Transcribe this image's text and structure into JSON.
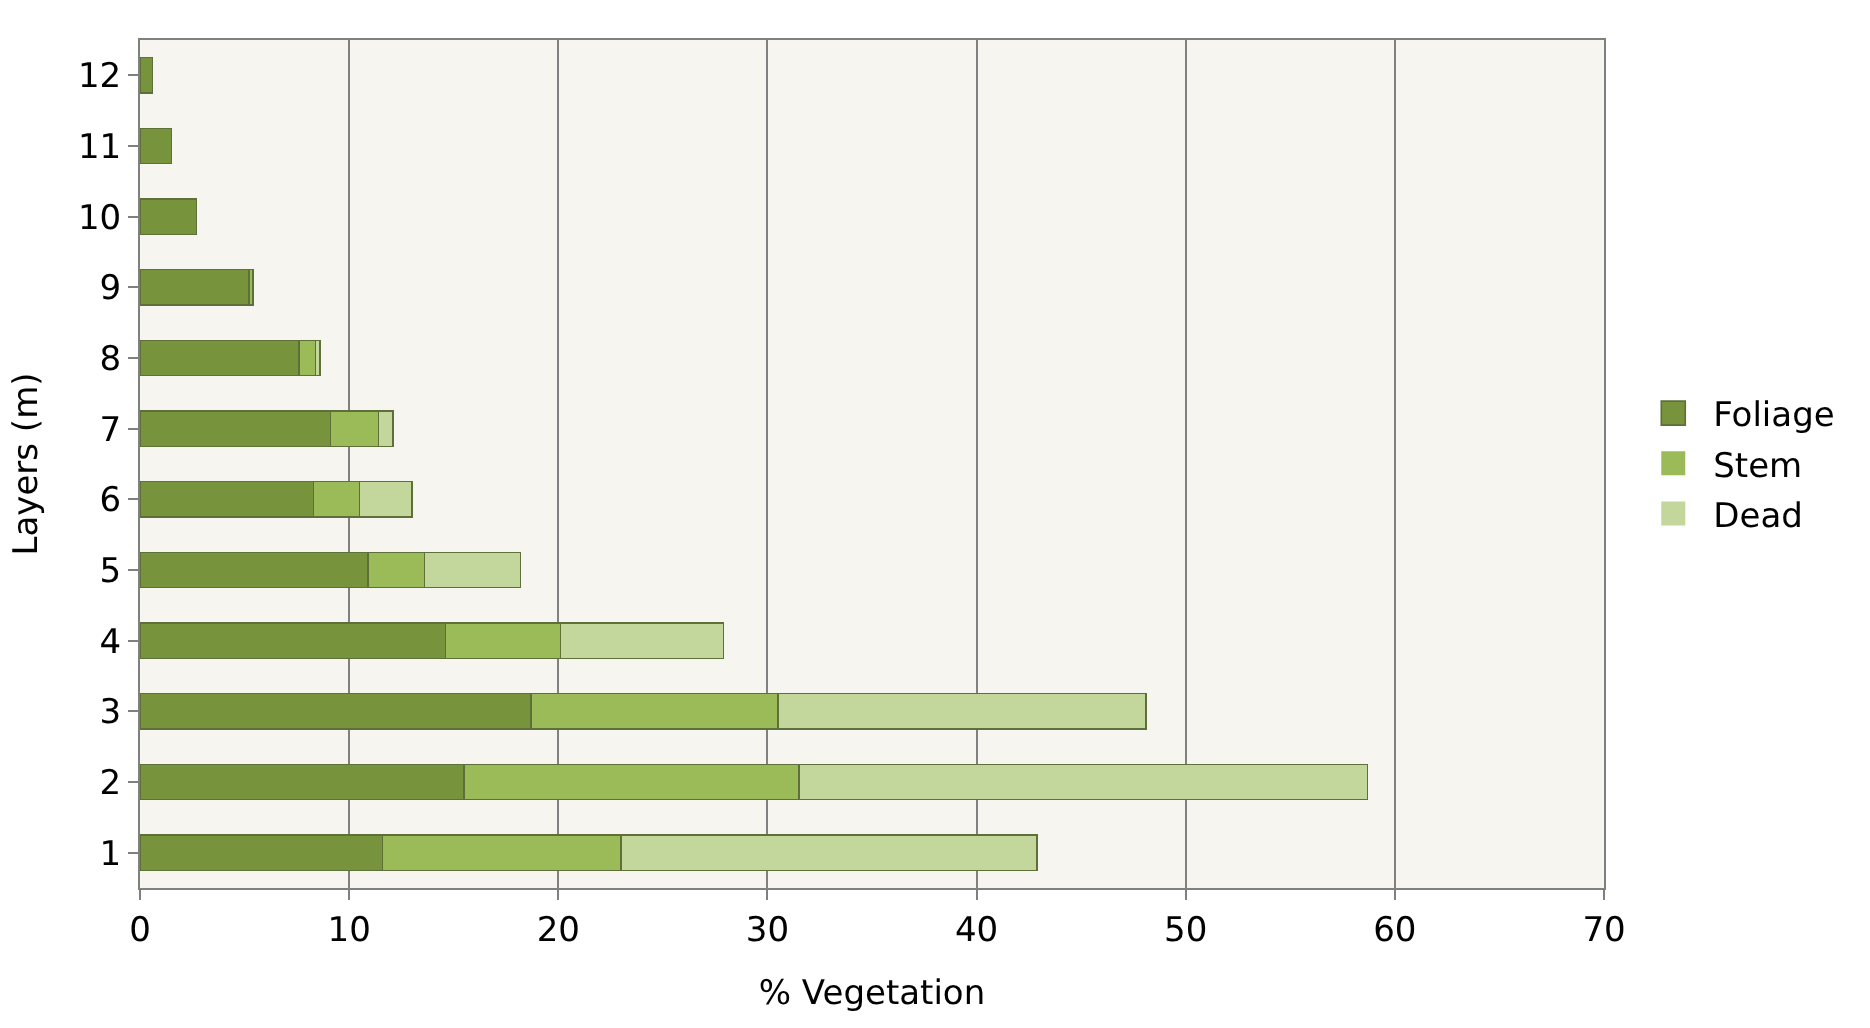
{
  "chart_data": {
    "type": "bar",
    "orientation": "horizontal",
    "stacked": true,
    "xlabel": "% Vegetation",
    "ylabel": "Layers (m)",
    "categories": [
      "12",
      "11",
      "10",
      "9",
      "8",
      "7",
      "6",
      "5",
      "4",
      "3",
      "2",
      "1"
    ],
    "series": [
      {
        "name": "Foliage",
        "color": "#77933c",
        "values": [
          0.6,
          1.5,
          2.7,
          5.2,
          7.6,
          9.1,
          8.3,
          10.9,
          14.6,
          18.7,
          15.5,
          11.6
        ]
      },
      {
        "name": "Stem",
        "color": "#9bbb59",
        "values": [
          0,
          0,
          0,
          0.2,
          0.8,
          2.3,
          2.2,
          2.7,
          5.5,
          11.8,
          16.0,
          11.4
        ]
      },
      {
        "name": "Dead",
        "color": "#c3d69b",
        "values": [
          0,
          0,
          0,
          0,
          0.2,
          0.7,
          2.5,
          4.6,
          7.8,
          17.6,
          27.2,
          19.9
        ]
      }
    ],
    "xlim": [
      0,
      70
    ],
    "xticks": [
      0,
      10,
      20,
      30,
      40,
      50,
      60,
      70
    ],
    "grid": "x",
    "legend": "right"
  }
}
